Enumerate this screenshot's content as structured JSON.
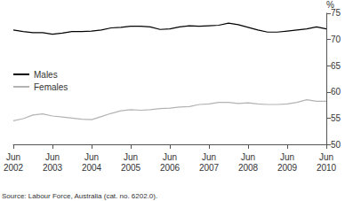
{
  "chart_data": {
    "type": "line",
    "ylabel": "%",
    "source": "Source: Labour Force, Australia (cat. no. 6202.0).",
    "categories": [
      "Jun 2002",
      null,
      null,
      null,
      "Jun 2003",
      null,
      null,
      null,
      "Jun 2004",
      null,
      null,
      null,
      "Jun 2005",
      null,
      null,
      null,
      "Jun 2006",
      null,
      null,
      null,
      "Jun 2007",
      null,
      null,
      null,
      "Jun 2008",
      null,
      null,
      null,
      "Jun 2009",
      null,
      null,
      null,
      "Jun 2010"
    ],
    "series": [
      {
        "name": "Males",
        "color": "#000000",
        "values": [
          71.8,
          71.5,
          71.3,
          71.3,
          71.0,
          71.2,
          71.5,
          71.5,
          71.6,
          71.8,
          72.2,
          72.3,
          72.5,
          72.5,
          72.4,
          71.9,
          72.0,
          72.4,
          72.6,
          72.5,
          72.6,
          72.7,
          73.1,
          72.8,
          72.3,
          71.8,
          71.4,
          71.4,
          71.6,
          71.8,
          72.0,
          72.4,
          72.0
        ]
      },
      {
        "name": "Females",
        "color": "#b3b3b3",
        "values": [
          54.5,
          54.9,
          55.6,
          55.8,
          55.4,
          55.2,
          55.0,
          54.8,
          54.7,
          55.3,
          55.9,
          56.4,
          56.6,
          56.5,
          56.6,
          56.8,
          56.9,
          57.1,
          57.2,
          57.6,
          57.7,
          58.0,
          58.0,
          57.8,
          57.9,
          57.7,
          57.6,
          57.6,
          57.7,
          58.0,
          58.5,
          58.2,
          58.2
        ]
      }
    ],
    "ylim": [
      50,
      75
    ],
    "yticks": [
      50,
      55,
      60,
      65,
      70,
      75
    ],
    "grid": false,
    "legend": "left"
  }
}
